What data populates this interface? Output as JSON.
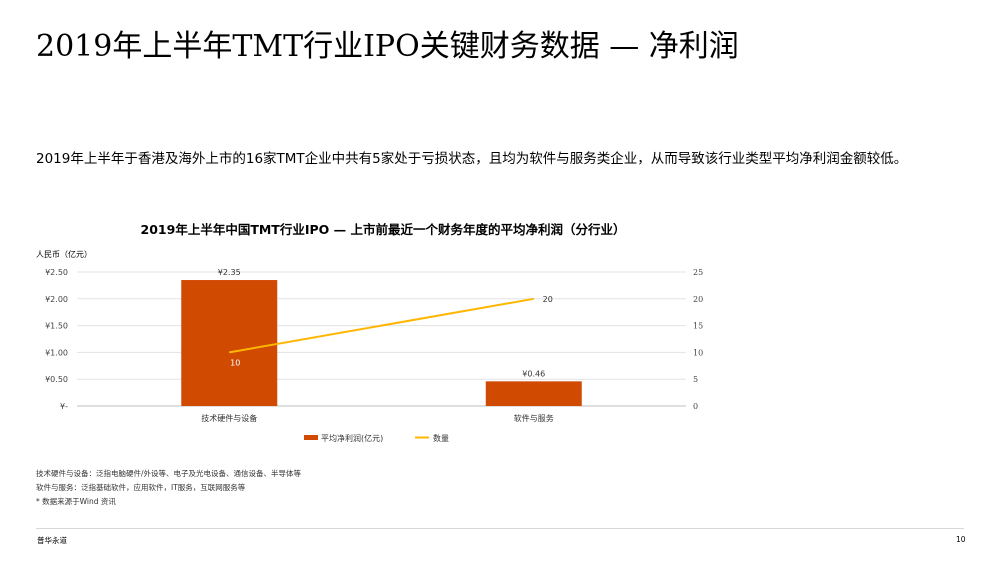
{
  "slide": {
    "title": "2019年上半年TMT行业IPO关键财务数据 — 净利润",
    "subtitle": "2019年上半年于香港及海外上市的16家TMT企业中共有5家处于亏损状态，且均为软件与服务类企业，从而导致该行业类型平均净利润金额较低。",
    "notes": [
      "技术硬件与设备：泛指电脑硬件/外设等、电子及光电设备、通信设备、半导体等",
      "软件与服务：泛指基础软件，应用软件，IT服务，互联网服务等",
      "* 数据来源于Wind 资讯"
    ],
    "footer_brand": "普华永道",
    "page_number": "10"
  },
  "chart_data": {
    "type": "bar",
    "title": "2019年上半年中国TMT行业IPO — 上市前最近一个财务年度的平均净利润（分行业）",
    "ylabel": "人民币（亿元）",
    "categories": [
      "技术硬件与设备",
      "软件与服务"
    ],
    "left_axis": {
      "ylim": [
        0,
        2.5
      ],
      "ticks": [
        "¥-",
        "¥0.50",
        "¥1.00",
        "¥1.50",
        "¥2.00",
        "¥2.50"
      ],
      "tick_values": [
        0,
        0.5,
        1,
        1.5,
        2,
        2.5
      ]
    },
    "right_axis": {
      "ylim": [
        0,
        25
      ],
      "ticks": [
        "0",
        "5",
        "10",
        "15",
        "20",
        "25"
      ],
      "tick_values": [
        0,
        5,
        10,
        15,
        20,
        25
      ]
    },
    "series": [
      {
        "name": "平均净利润(亿元)",
        "kind": "bar",
        "axis": "left",
        "color": "#d04a02",
        "values": [
          2.35,
          0.46
        ],
        "labels": [
          "¥2.35",
          "¥0.46"
        ]
      },
      {
        "name": "数量",
        "kind": "line",
        "axis": "right",
        "color": "#ffb600",
        "values": [
          10,
          20
        ],
        "labels": [
          "10",
          "20"
        ]
      }
    ],
    "grid": true,
    "legend": "bottom"
  }
}
